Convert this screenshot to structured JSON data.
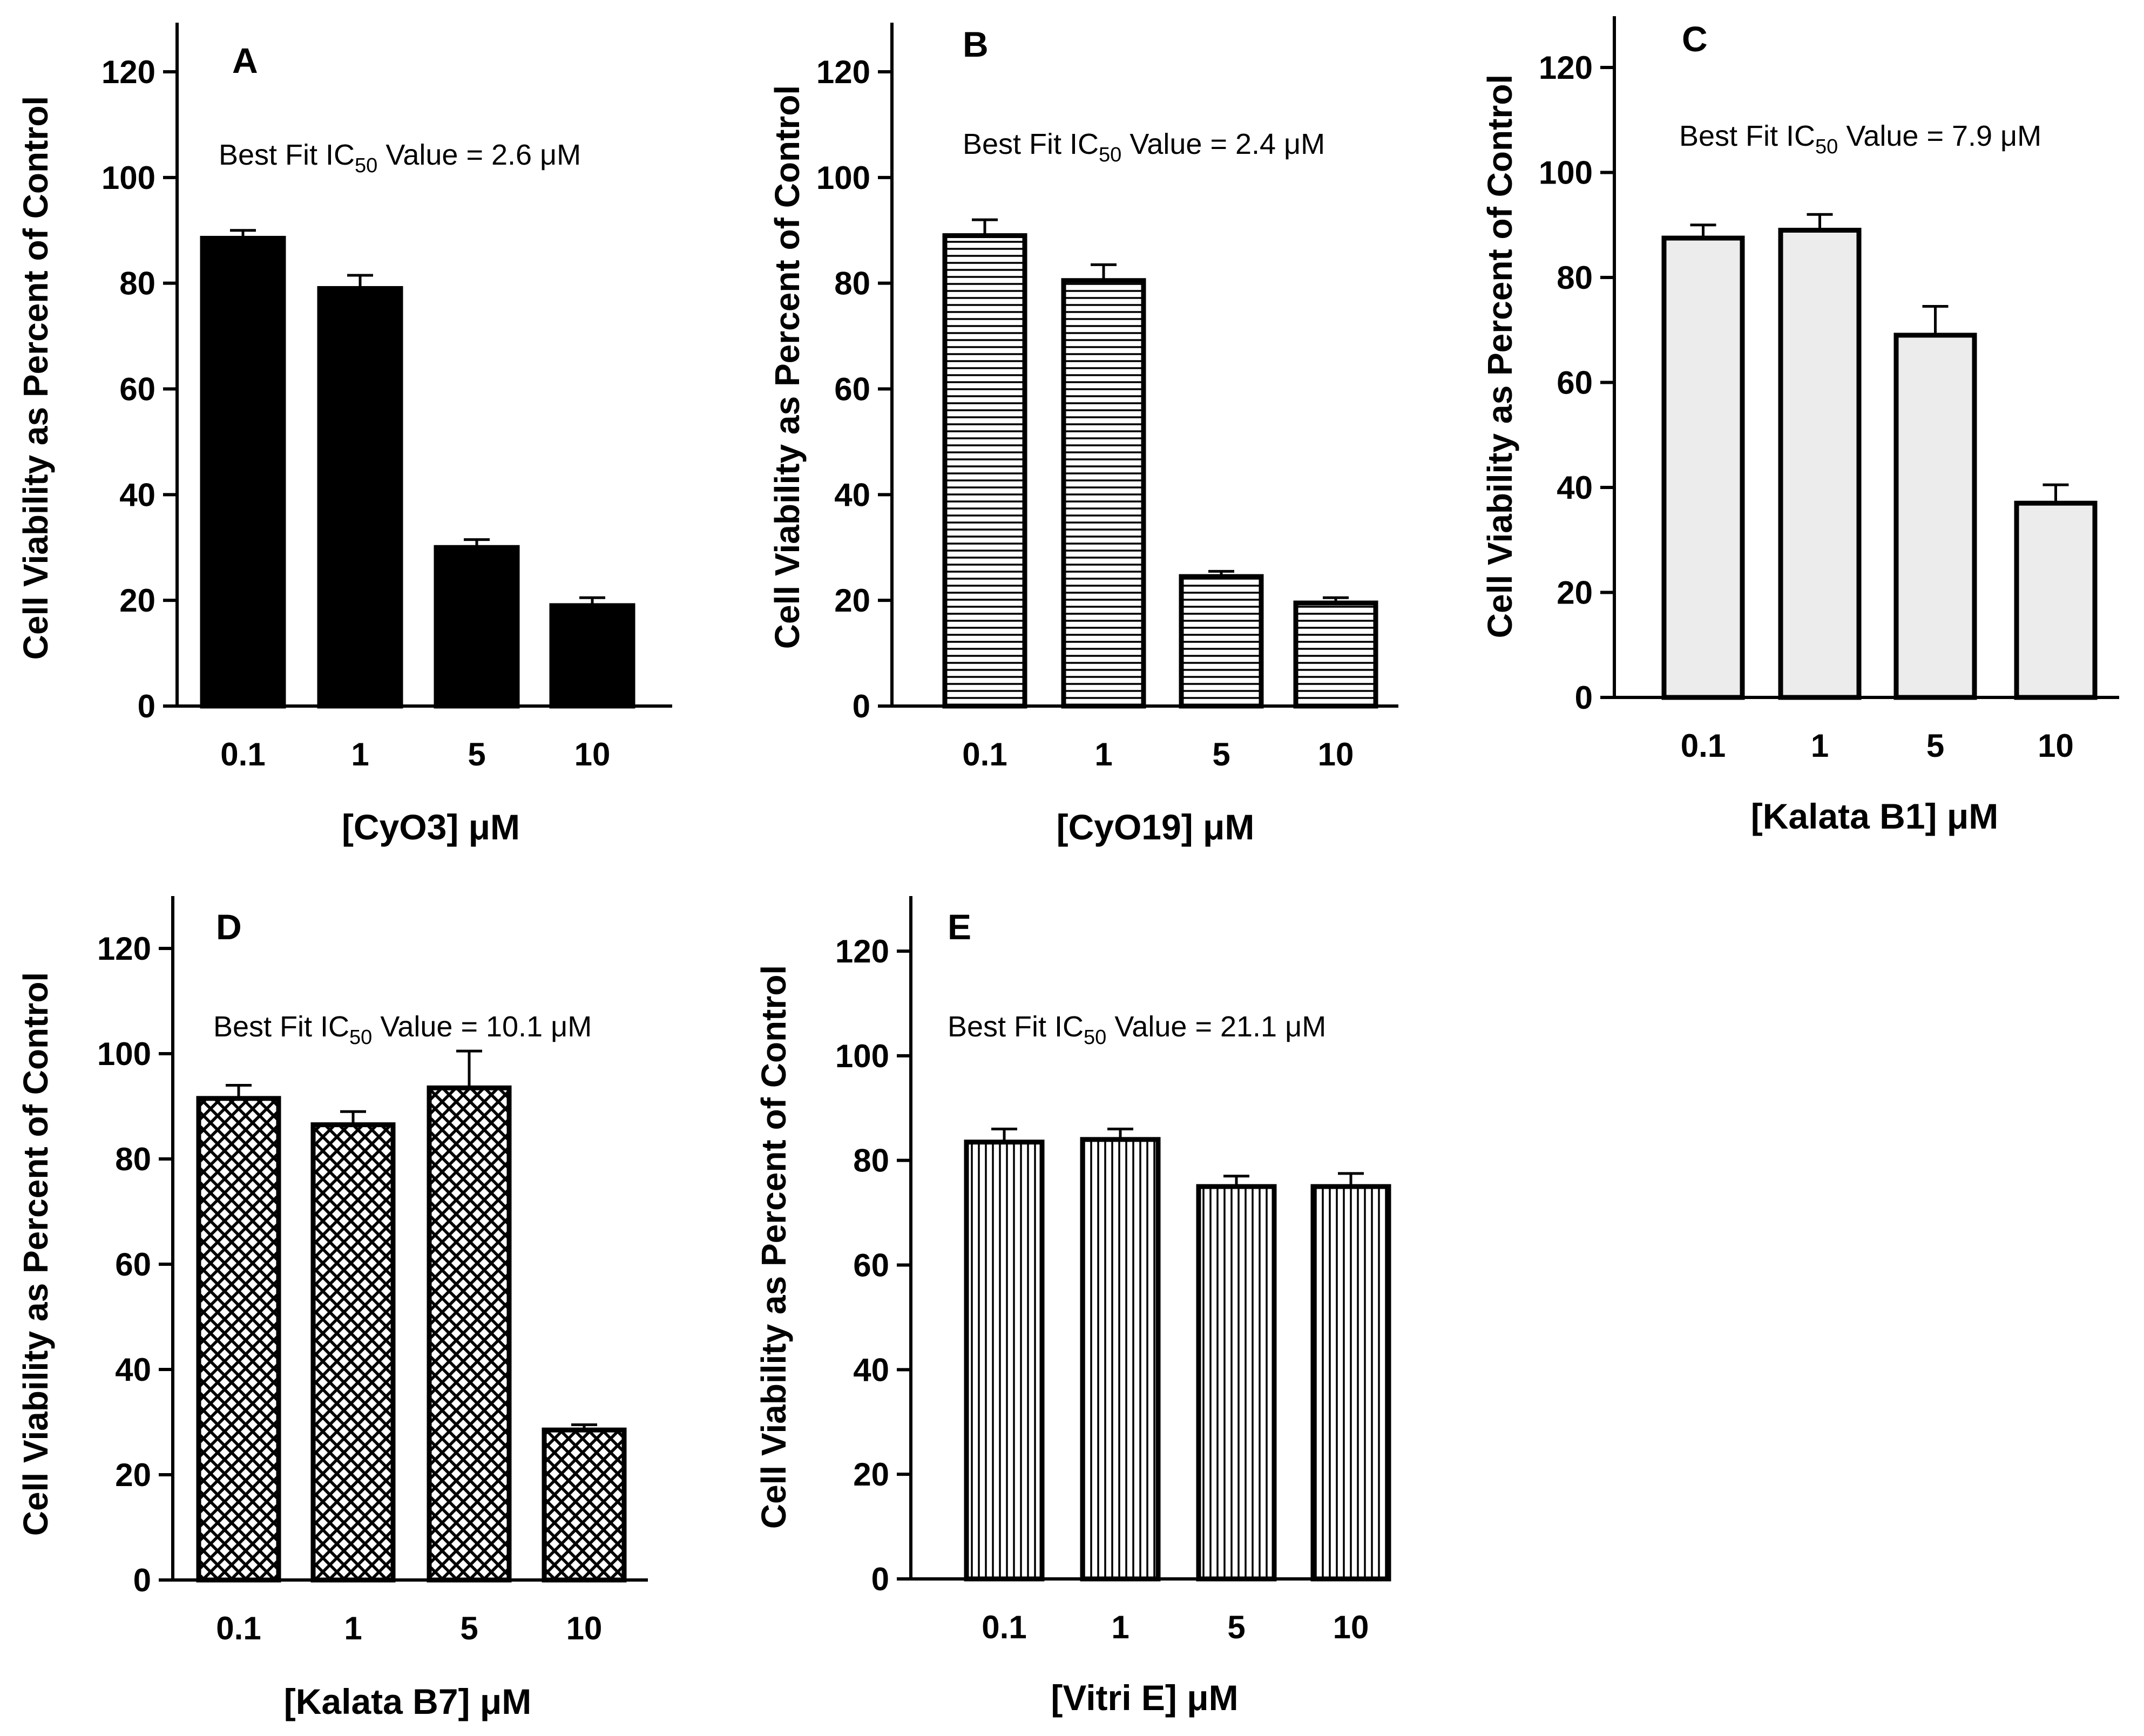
{
  "chart_data": [
    {
      "type": "bar",
      "panel_label": "A",
      "annotation": {
        "prefix": "Best Fit IC",
        "subscript": "50",
        "suffix": " Value = 2.6 μM"
      },
      "categories": [
        "0.1",
        "1",
        "5",
        "10"
      ],
      "values": [
        88.5,
        79,
        30,
        19
      ],
      "errors": [
        1.5,
        2.5,
        1.5,
        1.5
      ],
      "xlabel": "[CyO3] μM",
      "ylabel": "Cell Viability as Percent of Control",
      "ylim": [
        0,
        130
      ],
      "yticks": [
        0,
        20,
        40,
        60,
        80,
        100,
        120
      ],
      "pattern": "solid"
    },
    {
      "type": "bar",
      "panel_label": "B",
      "annotation": {
        "prefix": "Best Fit IC",
        "subscript": "50",
        "suffix": " Value = 2.4 μM"
      },
      "categories": [
        "0.1",
        "1",
        "5",
        "10"
      ],
      "values": [
        89,
        80.5,
        24.5,
        19.5
      ],
      "errors": [
        3,
        3,
        1,
        1
      ],
      "xlabel": "[CyO19] μM",
      "ylabel": "Cell Viability as Percent of Control",
      "ylim": [
        0,
        130
      ],
      "yticks": [
        0,
        20,
        40,
        60,
        80,
        100,
        120
      ],
      "pattern": "horizontal"
    },
    {
      "type": "bar",
      "panel_label": "C",
      "annotation": {
        "prefix": "Best Fit IC",
        "subscript": "50",
        "suffix": " Value = 7.9 μM"
      },
      "categories": [
        "0.1",
        "1",
        "5",
        "10"
      ],
      "values": [
        87.5,
        89,
        69,
        37
      ],
      "errors": [
        2.5,
        3,
        5.5,
        3.5
      ],
      "xlabel": "[Kalata B1] μM",
      "ylabel": "Cell Viability as Percent of Control",
      "ylim": [
        0,
        130
      ],
      "yticks": [
        0,
        20,
        40,
        60,
        80,
        100,
        120
      ],
      "pattern": "light"
    },
    {
      "type": "bar",
      "panel_label": "D",
      "annotation": {
        "prefix": "Best Fit IC",
        "subscript": "50",
        "suffix": " Value = 10.1 μM"
      },
      "categories": [
        "0.1",
        "1",
        "5",
        "10"
      ],
      "values": [
        91.5,
        86.5,
        93.5,
        28.5
      ],
      "errors": [
        2.5,
        2.5,
        7,
        1
      ],
      "xlabel": "[Kalata B7] μM",
      "ylabel": "Cell Viability as Percent of Control",
      "ylim": [
        0,
        130
      ],
      "yticks": [
        0,
        20,
        40,
        60,
        80,
        100,
        120
      ],
      "pattern": "crosshatch"
    },
    {
      "type": "bar",
      "panel_label": "E",
      "annotation": {
        "prefix": "Best Fit IC",
        "subscript": "50",
        "suffix": " Value = 21.1 μM"
      },
      "categories": [
        "0.1",
        "1",
        "5",
        "10"
      ],
      "values": [
        83.5,
        84,
        75,
        75
      ],
      "errors": [
        2.5,
        2,
        2,
        2.5
      ],
      "xlabel": "[Vitri E] μM",
      "ylabel": "Cell Viability as Percent of Control",
      "ylim": [
        0,
        130
      ],
      "yticks": [
        0,
        20,
        40,
        60,
        80,
        100,
        120
      ],
      "pattern": "vertical"
    }
  ]
}
